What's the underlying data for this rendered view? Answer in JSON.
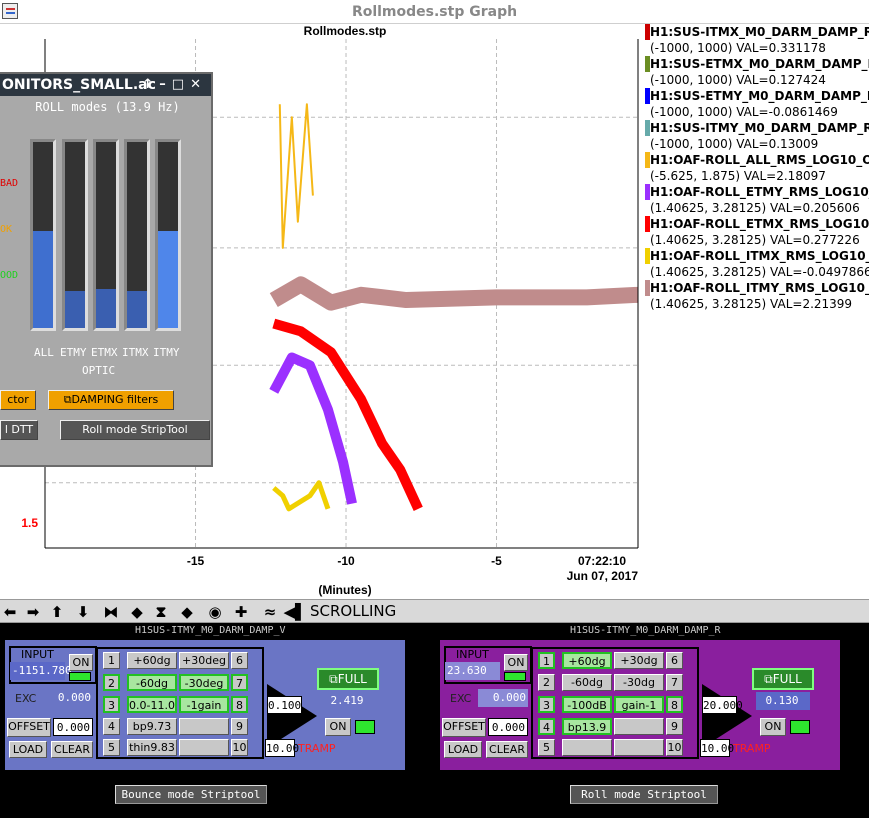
{
  "window": {
    "title": "Rollmodes.stp Graph"
  },
  "plot": {
    "title": "Rollmodes.stp",
    "xlabel": "(Minutes)",
    "x_ticks": [
      "-15",
      "-10",
      "-5"
    ],
    "time_label": "07:22:10",
    "date_label": "Jun 07, 2017",
    "y_tick": "1.5",
    "y_tick_color": "#ff0000"
  },
  "chart_data": {
    "type": "line",
    "xlabel": "(Minutes)",
    "xlim": [
      -20,
      -0.3
    ],
    "series": [
      {
        "name": "H1:OAF-ROLL_ALL_RMS_LOG10_O",
        "color": "#f5b817",
        "x": [
          -12.2,
          -12.1,
          -11.8,
          -11.6,
          -11.3,
          -11.1
        ],
        "y": [
          2.95,
          2.4,
          2.9,
          2.5,
          2.95,
          2.6
        ]
      },
      {
        "name": "H1:OAF-ROLL_ITMY_RMS_LOG10_O",
        "color": "#c08c8c",
        "x": [
          -12.4,
          -11.5,
          -10.5,
          -9.5,
          -8,
          -5,
          -2,
          -0.3
        ],
        "y": [
          2.2,
          2.26,
          2.19,
          2.22,
          2.2,
          2.21,
          2.21,
          2.22
        ]
      },
      {
        "name": "H1:OAF-ROLL_ETMX_RMS_LOG10_O",
        "color": "#ff0000",
        "x": [
          -12.4,
          -11.5,
          -10.5,
          -9.5,
          -8.8,
          -8.2,
          -7.6
        ],
        "y": [
          2.11,
          2.08,
          2.0,
          1.82,
          1.65,
          1.55,
          1.4
        ]
      },
      {
        "name": "H1:OAF-ROLL_ETMY_RMS_LOG10_O",
        "color": "#9b30ff",
        "x": [
          -12.4,
          -11.8,
          -11.2,
          -10.6,
          -10.1,
          -9.8
        ],
        "y": [
          1.85,
          1.98,
          1.95,
          1.78,
          1.58,
          1.42
        ]
      },
      {
        "name": "H1:OAF-ROLL_ITMX_RMS_LOG10_O",
        "color": "#f0d000",
        "x": [
          -12.4,
          -12.1,
          -11.9,
          -11.2,
          -10.9,
          -10.6
        ],
        "y": [
          1.48,
          1.45,
          1.4,
          1.45,
          1.5,
          1.4
        ]
      }
    ]
  },
  "legend": [
    {
      "name": "H1:SUS-ITMX_M0_DARM_DAMP_R_",
      "range": "(-1000, 1000) VAL=0.331178",
      "color": "#cc0000"
    },
    {
      "name": "H1:SUS-ETMX_M0_DARM_DAMP_R_",
      "range": "(-1000, 1000) VAL=0.127424",
      "color": "#6b8e23"
    },
    {
      "name": "H1:SUS-ETMY_M0_DARM_DAMP_R_",
      "range": "(-1000, 1000) VAL=-0.0861469",
      "color": "#0000ff"
    },
    {
      "name": "H1:SUS-ITMY_M0_DARM_DAMP_R_",
      "range": "(-1000, 1000) VAL=0.13009",
      "color": "#66aaaa"
    },
    {
      "name": "H1:OAF-ROLL_ALL_RMS_LOG10_O",
      "range": "(-5.625, 1.875) VAL=2.18097",
      "color": "#f5b817"
    },
    {
      "name": "H1:OAF-ROLL_ETMY_RMS_LOG10_O",
      "range": "(1.40625, 3.28125) VAL=0.205606",
      "color": "#9b30ff"
    },
    {
      "name": "H1:OAF-ROLL_ETMX_RMS_LOG10_O",
      "range": "(1.40625, 3.28125) VAL=0.277226",
      "color": "#ff0000"
    },
    {
      "name": "H1:OAF-ROLL_ITMX_RMS_LOG10_O",
      "range": "(1.40625, 3.28125) VAL=-0.0497866",
      "color": "#f0d000"
    },
    {
      "name": "H1:OAF-ROLL_ITMY_RMS_LOG10_O",
      "range": "(1.40625, 3.28125) VAL=2.21399",
      "color": "#c08c8c"
    }
  ],
  "toolbar": {
    "mode_label": "SCROLLING"
  },
  "monitor": {
    "title": "ONITORS_SMALL.ac",
    "subtitle": "ROLL modes (13.9 Hz)",
    "level_bad": "BAD",
    "level_ok": "OK",
    "level_good": "OOD",
    "bars": [
      {
        "label": "ALL",
        "level": 0.52
      },
      {
        "label": "ETMY",
        "level": 0.2
      },
      {
        "label": "ETMX",
        "level": 0.21
      },
      {
        "label": "ITMX",
        "level": 0.2
      },
      {
        "label": "ITMY",
        "level": 0.52
      }
    ],
    "optic_label": "OPTIC",
    "btn_ctor": "ctor",
    "btn_damping": "DAMPING filters",
    "btn_dtt": "l DTT",
    "btn_striptool": "Roll mode StripTool"
  },
  "filters": [
    {
      "title": "H1SUS-ITMY_M0_DARM_DAMP_V",
      "bg": "#6a75c5",
      "input_label": "INPUT",
      "input_value": "-1151.780",
      "on_label": "ON",
      "exc_label": "EXC",
      "exc_value": "0.000",
      "offset_label": "OFFSET",
      "offset_value": "0.000",
      "load_label": "LOAD",
      "clear_label": "CLEAR",
      "gain_value": "0.100",
      "tramp_value": "10.00",
      "tramp_label": "TRAMP",
      "full_label": "FULL",
      "output_value": "2.419",
      "out_on_label": "ON",
      "banks": [
        {
          "num": "1",
          "name": "+60dg",
          "on": false
        },
        {
          "num": "2",
          "name": "-60dg",
          "on": true
        },
        {
          "num": "3",
          "name": "0.0-11.0",
          "on": true
        },
        {
          "num": "4",
          "name": "bp9.73",
          "on": false
        },
        {
          "num": "5",
          "name": "thin9.83",
          "on": false
        },
        {
          "num": "6",
          "name": "+30deg",
          "on": false
        },
        {
          "num": "7",
          "name": "-30deg",
          "on": true
        },
        {
          "num": "8",
          "name": "-1gain",
          "on": true
        },
        {
          "num": "9",
          "name": "",
          "on": false
        },
        {
          "num": "10",
          "name": "",
          "on": false
        }
      ],
      "strip_button": "Bounce mode Striptool"
    },
    {
      "title": "H1SUS-ITMY_M0_DARM_DAMP_R",
      "bg": "#8a1f9e",
      "input_label": "INPUT",
      "input_value": "23.630",
      "on_label": "ON",
      "exc_label": "EXC",
      "exc_value": "0.000",
      "offset_label": "OFFSET",
      "offset_value": "0.000",
      "load_label": "LOAD",
      "clear_label": "CLEAR",
      "gain_value": "20.000",
      "tramp_value": "10.00",
      "tramp_label": "TRAMP",
      "full_label": "FULL",
      "output_value": "0.130",
      "out_on_label": "ON",
      "banks": [
        {
          "num": "1",
          "name": "+60dg",
          "on": true
        },
        {
          "num": "2",
          "name": "-60dg",
          "on": false
        },
        {
          "num": "3",
          "name": "-100dB",
          "on": true
        },
        {
          "num": "4",
          "name": "bp13.9",
          "on": true
        },
        {
          "num": "5",
          "name": "",
          "on": false
        },
        {
          "num": "6",
          "name": "+30dg",
          "on": false
        },
        {
          "num": "7",
          "name": "-30dg",
          "on": false
        },
        {
          "num": "8",
          "name": "gain-1",
          "on": true
        },
        {
          "num": "9",
          "name": "",
          "on": false
        },
        {
          "num": "10",
          "name": "",
          "on": false
        }
      ],
      "strip_button": "Roll mode Striptool"
    }
  ]
}
